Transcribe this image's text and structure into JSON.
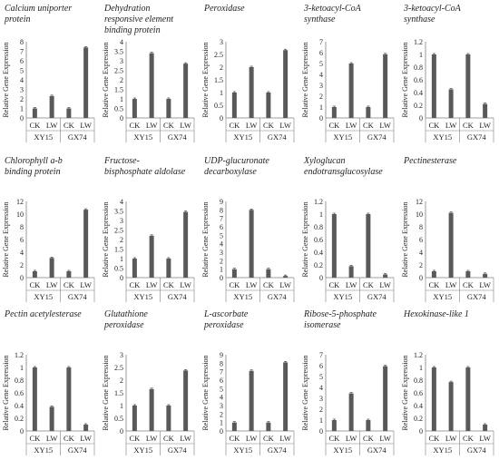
{
  "chart_data": [
    {
      "type": "bar",
      "title": [
        "Calcium uniporter",
        "protein"
      ],
      "ylabel": "Relative Gene Expression",
      "ylim": [
        0,
        8
      ],
      "yticks": [
        0,
        1,
        2,
        3,
        4,
        5,
        6,
        7,
        8
      ],
      "categories": [
        "CK",
        "LW",
        "CK",
        "LW"
      ],
      "groups": [
        "XY15",
        "GX74"
      ],
      "values": [
        1,
        2.3,
        1,
        7.4
      ]
    },
    {
      "type": "bar",
      "title": [
        "Dehydration",
        "responsive element",
        "binding protein"
      ],
      "ylabel": "Relative Gene Expression",
      "ylim": [
        0,
        4
      ],
      "yticks": [
        0,
        0.5,
        1,
        1.5,
        2,
        2.5,
        3,
        3.5,
        4
      ],
      "categories": [
        "CK",
        "LW",
        "CK",
        "LW"
      ],
      "groups": [
        "XY15",
        "GX74"
      ],
      "values": [
        1,
        3.4,
        1,
        2.85
      ]
    },
    {
      "type": "bar",
      "title": [
        "Peroxidase"
      ],
      "ylabel": "Relative Gene Expression",
      "ylim": [
        0,
        3
      ],
      "yticks": [
        0,
        0.5,
        1,
        1.5,
        2,
        2.5,
        3
      ],
      "categories": [
        "CK",
        "LW",
        "CK",
        "LW"
      ],
      "groups": [
        "XY15",
        "GX74"
      ],
      "values": [
        1,
        2,
        1,
        2.67
      ]
    },
    {
      "type": "bar",
      "title": [
        "3-ketoacyl-CoA",
        "synthase"
      ],
      "ylabel": "Relative Gene Expression",
      "ylim": [
        0,
        7
      ],
      "yticks": [
        0,
        1,
        2,
        3,
        4,
        5,
        6,
        7
      ],
      "categories": [
        "CK",
        "LW",
        "CK",
        "LW"
      ],
      "groups": [
        "XY15",
        "GX74"
      ],
      "values": [
        1,
        5,
        1,
        5.85
      ]
    },
    {
      "type": "bar",
      "title": [
        "3-ketoacyl-CoA",
        "synthase"
      ],
      "ylabel": "Relative Gene Expression",
      "ylim": [
        0,
        1.2
      ],
      "yticks": [
        0,
        0.2,
        0.4,
        0.6,
        0.8,
        1,
        1.2
      ],
      "categories": [
        "CK",
        "LW",
        "CK",
        "LW"
      ],
      "groups": [
        "XY15",
        "GX74"
      ],
      "values": [
        1,
        0.45,
        1,
        0.22
      ]
    },
    {
      "type": "bar",
      "title": [
        "Chlorophyll a-b",
        "binding protein"
      ],
      "ylabel": "Relative Gene Expression",
      "ylim": [
        0,
        12
      ],
      "yticks": [
        0,
        2,
        4,
        6,
        8,
        10,
        12
      ],
      "categories": [
        "CK",
        "LW",
        "CK",
        "LW"
      ],
      "groups": [
        "XY15",
        "GX74"
      ],
      "values": [
        1,
        3.1,
        1,
        10.7
      ]
    },
    {
      "type": "bar",
      "title": [
        "Fructose-",
        "bisphosphate aldolase"
      ],
      "ylabel": "Relative Gene Expression",
      "ylim": [
        0,
        4
      ],
      "yticks": [
        0,
        0.5,
        1,
        1.5,
        2,
        2.5,
        3,
        3.5,
        4
      ],
      "categories": [
        "CK",
        "LW",
        "CK",
        "LW"
      ],
      "groups": [
        "XY15",
        "GX74"
      ],
      "values": [
        1,
        2.2,
        1,
        3.45
      ]
    },
    {
      "type": "bar",
      "title": [
        "UDP-glucuronate",
        "decarboxylase"
      ],
      "ylabel": "Relative Gene Expression",
      "ylim": [
        0,
        9
      ],
      "yticks": [
        0,
        1,
        2,
        3,
        4,
        5,
        6,
        7,
        8,
        9
      ],
      "categories": [
        "CK",
        "LW",
        "CK",
        "LW"
      ],
      "groups": [
        "XY15",
        "GX74"
      ],
      "values": [
        1,
        8,
        1,
        0.2
      ]
    },
    {
      "type": "bar",
      "title": [
        "Xyloglucan",
        "endotransglucosylase"
      ],
      "ylabel": "Relative Gene Expression",
      "ylim": [
        0,
        1.2
      ],
      "yticks": [
        0,
        0.2,
        0.4,
        0.6,
        0.8,
        1,
        1.2
      ],
      "categories": [
        "CK",
        "LW",
        "CK",
        "LW"
      ],
      "groups": [
        "XY15",
        "GX74"
      ],
      "values": [
        1,
        0.18,
        1,
        0.05
      ]
    },
    {
      "type": "bar",
      "title": [
        "Pectinesterase"
      ],
      "ylabel": "Relative Gene Expression",
      "ylim": [
        0,
        12
      ],
      "yticks": [
        0,
        2,
        4,
        6,
        8,
        10,
        12
      ],
      "categories": [
        "CK",
        "LW",
        "CK",
        "LW"
      ],
      "groups": [
        "XY15",
        "GX74"
      ],
      "values": [
        1,
        10.2,
        1,
        0.6
      ]
    },
    {
      "type": "bar",
      "title": [
        "Pectin acetylesterase"
      ],
      "ylabel": "Relative Gene Expression",
      "ylim": [
        0,
        1.2
      ],
      "yticks": [
        0,
        0.2,
        0.4,
        0.6,
        0.8,
        1,
        1.2
      ],
      "categories": [
        "CK",
        "LW",
        "CK",
        "LW"
      ],
      "groups": [
        "XY15",
        "GX74"
      ],
      "values": [
        1,
        0.38,
        1,
        0.1
      ]
    },
    {
      "type": "bar",
      "title": [
        "Glutathione",
        "peroxidase"
      ],
      "ylabel": "Relative Gene Expression",
      "ylim": [
        0,
        3
      ],
      "yticks": [
        0,
        0.5,
        1,
        1.5,
        2,
        2.5,
        3
      ],
      "categories": [
        "CK",
        "LW",
        "CK",
        "LW"
      ],
      "groups": [
        "XY15",
        "GX74"
      ],
      "values": [
        1,
        1.65,
        1,
        2.38
      ]
    },
    {
      "type": "bar",
      "title": [
        "L-ascorbate",
        "peroxidase"
      ],
      "ylabel": "Relative Gene Expression",
      "ylim": [
        0,
        9
      ],
      "yticks": [
        0,
        1,
        2,
        3,
        4,
        5,
        6,
        7,
        8,
        9
      ],
      "categories": [
        "CK",
        "LW",
        "CK",
        "LW"
      ],
      "groups": [
        "XY15",
        "GX74"
      ],
      "values": [
        1,
        7.1,
        1,
        8.1
      ]
    },
    {
      "type": "bar",
      "title": [
        "Ribose-5-phosphate",
        "isomerase"
      ],
      "ylabel": "Relative Gene Expression",
      "ylim": [
        0,
        7
      ],
      "yticks": [
        0,
        1,
        2,
        3,
        4,
        5,
        6,
        7
      ],
      "categories": [
        "CK",
        "LW",
        "CK",
        "LW"
      ],
      "groups": [
        "XY15",
        "GX74"
      ],
      "values": [
        1,
        3.45,
        1,
        5.95
      ]
    },
    {
      "type": "bar",
      "title": [
        "Hexokinase-like 1"
      ],
      "ylabel": "Relative Gene Expression",
      "ylim": [
        0,
        1.2
      ],
      "yticks": [
        0,
        0.2,
        0.4,
        0.6,
        0.8,
        1,
        1.2
      ],
      "categories": [
        "CK",
        "LW",
        "CK",
        "LW"
      ],
      "groups": [
        "XY15",
        "GX74"
      ],
      "values": [
        1,
        0.77,
        1,
        0.1
      ]
    }
  ],
  "colors": {
    "bar": "#595959",
    "axis": "#7f7f7f",
    "text": "#222222"
  }
}
